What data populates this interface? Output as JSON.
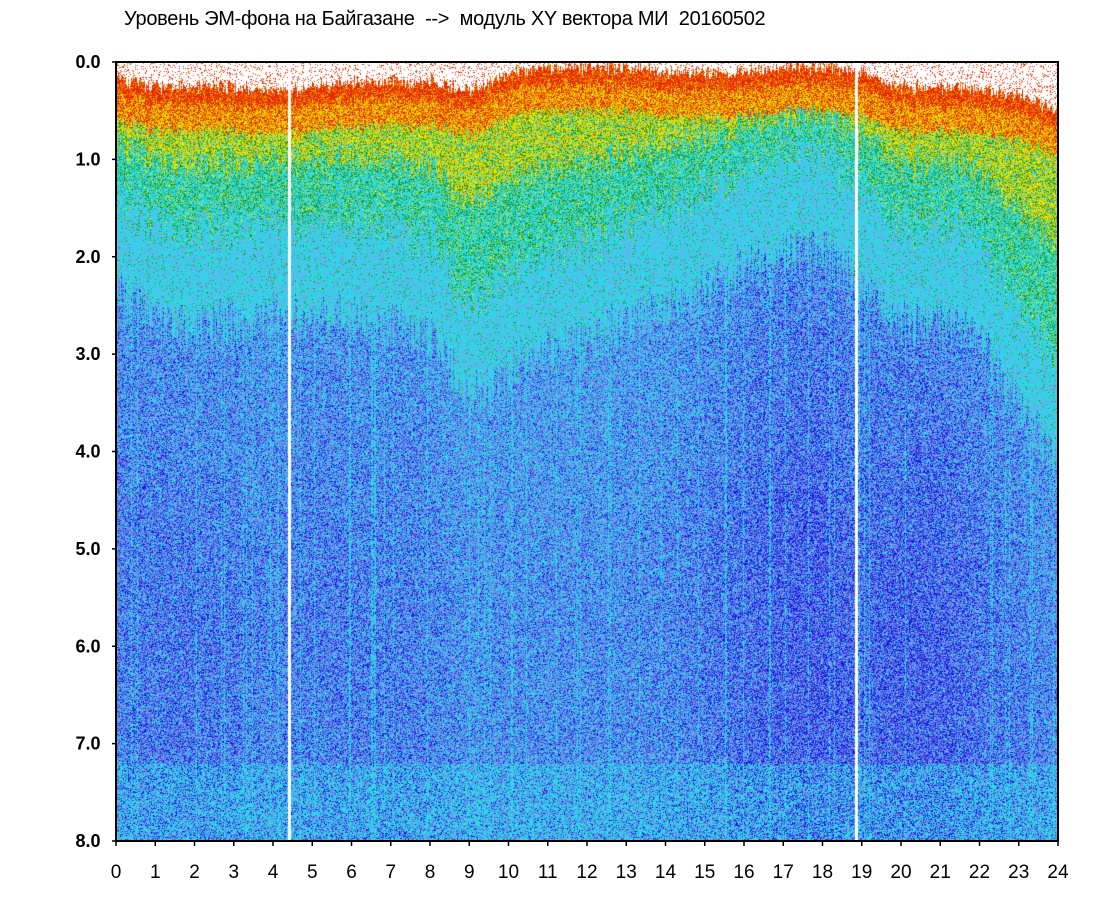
{
  "chart_data": {
    "type": "heatmap",
    "title": "Уровень ЭМ-фона на Байгазане  -->  модуль XY вектора МИ  20160502",
    "xlabel": "",
    "ylabel": "",
    "xlim": [
      0,
      24
    ],
    "ylim": [
      0,
      8
    ],
    "y_inverted": true,
    "grid": false,
    "x_ticks": [
      "0",
      "1",
      "2",
      "3",
      "4",
      "5",
      "6",
      "7",
      "8",
      "9",
      "10",
      "11",
      "12",
      "13",
      "14",
      "15",
      "16",
      "17",
      "18",
      "19",
      "20",
      "21",
      "22",
      "23",
      "24"
    ],
    "y_ticks": [
      "0.0",
      "1.0",
      "2.0",
      "3.0",
      "4.0",
      "5.0",
      "6.0",
      "7.0",
      "8.0"
    ],
    "colors": {
      "background": "#ffffff",
      "dark_blue": "#1a1adc",
      "blue": "#5a6ee6",
      "light_blue": "#7aa0f0",
      "cyan": "#2ed8e6",
      "green": "#1a9a1a",
      "yellow": "#e6e600",
      "orange": "#f0a000",
      "red": "#e62a00"
    },
    "upper_envelope_by_hour": [
      0.15,
      0.25,
      0.25,
      0.25,
      0.3,
      0.25,
      0.2,
      0.2,
      0.2,
      0.3,
      0.1,
      0.05,
      0.05,
      0.05,
      0.1,
      0.1,
      0.1,
      0.05,
      0.05,
      0.1,
      0.25,
      0.25,
      0.3,
      0.35,
      0.5
    ],
    "green_front_depth_by_hour": [
      1.2,
      1.4,
      1.5,
      1.4,
      1.3,
      1.4,
      1.4,
      1.5,
      1.6,
      2.2,
      2.0,
      1.9,
      1.8,
      1.6,
      1.4,
      1.2,
      1.0,
      0.9,
      0.9,
      1.2,
      1.4,
      1.4,
      1.6,
      2.2,
      2.6
    ],
    "dark_blue_intensity_by_hour": [
      0.45,
      0.5,
      0.5,
      0.45,
      0.35,
      0.45,
      0.45,
      0.45,
      0.4,
      0.25,
      0.3,
      0.3,
      0.3,
      0.3,
      0.35,
      0.45,
      0.6,
      0.7,
      0.75,
      0.6,
      0.7,
      0.7,
      0.55,
      0.45,
      0.3
    ],
    "gaps_hours": [
      4.4,
      18.85
    ]
  }
}
